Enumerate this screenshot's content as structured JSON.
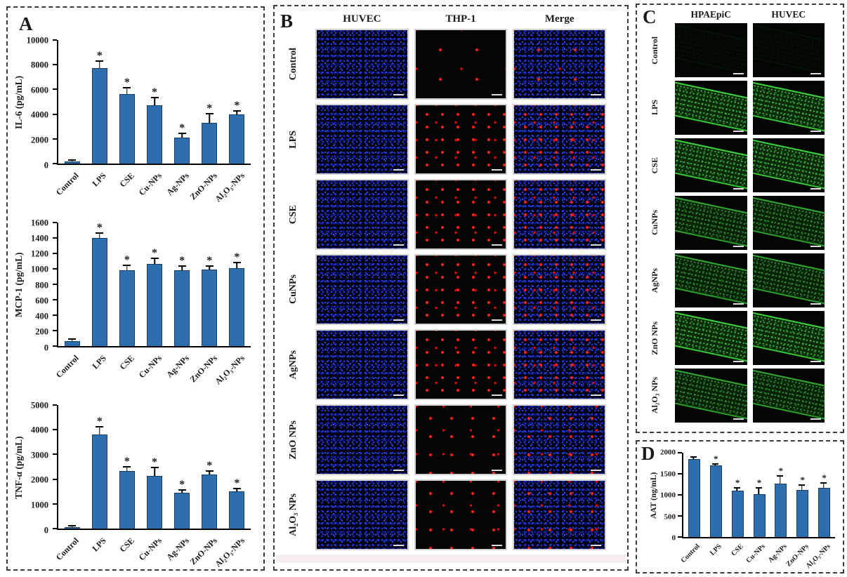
{
  "figure": {
    "panel_a_label": "A",
    "panel_b_label": "B",
    "panel_c_label": "C",
    "panel_d_label": "D"
  },
  "colors": {
    "bar_fill": "#2d6eaf",
    "bar_border": "#1c3b5e",
    "dapi_blue": "#2742e0",
    "thp1_red": "#ea1010",
    "gfp_green": "#3fd03f"
  },
  "chart_data": [
    {
      "id": "il6",
      "type": "bar",
      "panel": "A",
      "title": "",
      "xlabel": "",
      "ylabel": "IL-6 (pg/mL)",
      "ylim": [
        0,
        10000
      ],
      "ystep": 2000,
      "grid": false,
      "legend": "none",
      "categories": [
        "Control",
        "LPS",
        "CSE",
        "Cu-NPs",
        "Ag-NPs",
        "ZnO-NPs",
        "Al₂O₃-NPs"
      ],
      "values": [
        180,
        7700,
        5650,
        4700,
        2080,
        3300,
        3950
      ],
      "errors": [
        60,
        550,
        450,
        600,
        280,
        650,
        250
      ],
      "sig": [
        false,
        true,
        true,
        true,
        true,
        true,
        true
      ]
    },
    {
      "id": "mcp1",
      "type": "bar",
      "panel": "A",
      "title": "",
      "xlabel": "",
      "ylabel": "MCP-1 (pg/mL)",
      "ylim": [
        0,
        1600
      ],
      "ystep": 200,
      "grid": false,
      "legend": "none",
      "categories": [
        "Control",
        "LPS",
        "CSE",
        "Cu-NPs",
        "Ag-NPs",
        "ZnO-NPs",
        "Al₂O₃-NPs"
      ],
      "values": [
        65,
        1400,
        980,
        1060,
        985,
        990,
        1010
      ],
      "errors": [
        15,
        55,
        55,
        70,
        40,
        35,
        60
      ],
      "sig": [
        false,
        true,
        true,
        true,
        true,
        true,
        true
      ]
    },
    {
      "id": "tnfa",
      "type": "bar",
      "panel": "A",
      "title": "",
      "xlabel": "",
      "ylabel": "TNF-α (pg/mL)",
      "ylim": [
        0,
        5000
      ],
      "ystep": 1000,
      "grid": false,
      "legend": "none",
      "categories": [
        "Control",
        "LPS",
        "CSE",
        "Cu-NPs",
        "Ag-NPs",
        "ZnO-NPs",
        "Al₂O₃-NPs"
      ],
      "values": [
        70,
        3800,
        2330,
        2130,
        1440,
        2190,
        1500
      ],
      "errors": [
        20,
        290,
        130,
        300,
        90,
        120,
        90
      ],
      "sig": [
        false,
        true,
        true,
        true,
        true,
        true,
        true
      ]
    },
    {
      "id": "aat",
      "type": "bar",
      "panel": "D",
      "title": "",
      "xlabel": "",
      "ylabel": "AAT (ng/mL)",
      "ylim": [
        0,
        2000
      ],
      "ystep": 500,
      "grid": false,
      "legend": "none",
      "categories": [
        "Control",
        "LPS",
        "CSE",
        "Cu-NPs",
        "Ag-NPs",
        "ZnO-NPs",
        "Al₂O₃-NPs"
      ],
      "values": [
        1850,
        1700,
        1100,
        1010,
        1270,
        1110,
        1170
      ],
      "errors": [
        40,
        25,
        45,
        140,
        170,
        100,
        90
      ],
      "sig": [
        false,
        true,
        true,
        true,
        true,
        true,
        true
      ]
    }
  ],
  "panel_b": {
    "columns": [
      "HUVEC",
      "THP-1",
      "Merge"
    ],
    "rows": [
      {
        "label": "Control",
        "thp1_density": "low"
      },
      {
        "label": "LPS",
        "thp1_density": "high"
      },
      {
        "label": "CSE",
        "thp1_density": "high"
      },
      {
        "label": "CuNPs",
        "thp1_density": "high"
      },
      {
        "label": "AgNPs",
        "thp1_density": "high"
      },
      {
        "label": "ZnO NPs",
        "thp1_density": "medium"
      },
      {
        "label": "Al₂O₃ NPs",
        "thp1_density": "medium"
      }
    ]
  },
  "panel_c": {
    "columns": [
      "HPAEpiC",
      "HUVEC"
    ],
    "rows": [
      {
        "label": "Control",
        "intensity": "none"
      },
      {
        "label": "LPS",
        "intensity": "high"
      },
      {
        "label": "CSE",
        "intensity": "high"
      },
      {
        "label": "CuNPs",
        "intensity": "medium"
      },
      {
        "label": "AgNPs",
        "intensity": "medium"
      },
      {
        "label": "ZnO NPs",
        "intensity": "high"
      },
      {
        "label": "Al₂O₃ NPs",
        "intensity": "medium"
      }
    ]
  }
}
